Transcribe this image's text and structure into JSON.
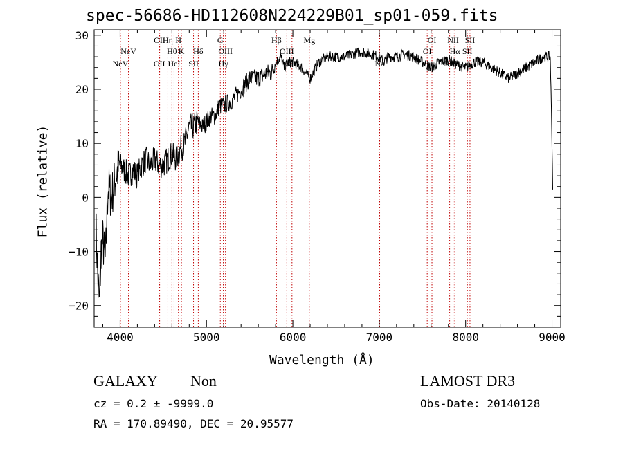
{
  "chart_data": {
    "type": "line",
    "title": "spec-56686-HD112608N224229B01_sp01-059.fits",
    "xlabel": "Wavelength (Å)",
    "ylabel": "Flux (relative)",
    "xlim": [
      3700,
      9100
    ],
    "ylim": [
      -24,
      31
    ],
    "xticks": [
      4000,
      5000,
      6000,
      7000,
      8000,
      9000
    ],
    "yticks": [
      -20,
      -10,
      0,
      10,
      20,
      30
    ],
    "line_color": "#000000",
    "marker_color": "#c00000",
    "series": [
      {
        "name": "flux",
        "anchors": [
          [
            3720,
            -5
          ],
          [
            3740,
            -14
          ],
          [
            3760,
            -20
          ],
          [
            3780,
            -10
          ],
          [
            3800,
            -8
          ],
          [
            3830,
            -12
          ],
          [
            3860,
            2
          ],
          [
            3900,
            0
          ],
          [
            3950,
            4
          ],
          [
            4000,
            6
          ],
          [
            4050,
            5
          ],
          [
            4100,
            4
          ],
          [
            4150,
            5
          ],
          [
            4200,
            4
          ],
          [
            4250,
            6
          ],
          [
            4300,
            7
          ],
          [
            4350,
            6
          ],
          [
            4400,
            7
          ],
          [
            4450,
            6
          ],
          [
            4500,
            6
          ],
          [
            4550,
            7
          ],
          [
            4600,
            8
          ],
          [
            4650,
            7
          ],
          [
            4700,
            9
          ],
          [
            4750,
            10
          ],
          [
            4800,
            13
          ],
          [
            4850,
            13
          ],
          [
            4900,
            14
          ],
          [
            4950,
            13
          ],
          [
            5000,
            14
          ],
          [
            5050,
            15
          ],
          [
            5100,
            15
          ],
          [
            5150,
            17
          ],
          [
            5200,
            17
          ],
          [
            5300,
            18
          ],
          [
            5400,
            20
          ],
          [
            5500,
            22
          ],
          [
            5600,
            22
          ],
          [
            5700,
            23
          ],
          [
            5750,
            23
          ],
          [
            5800,
            25
          ],
          [
            5860,
            26
          ],
          [
            5900,
            24
          ],
          [
            5950,
            25
          ],
          [
            6000,
            25
          ],
          [
            6100,
            24
          ],
          [
            6200,
            22
          ],
          [
            6300,
            25
          ],
          [
            6400,
            26
          ],
          [
            6500,
            26
          ],
          [
            6600,
            26
          ],
          [
            6700,
            26.5
          ],
          [
            6800,
            27
          ],
          [
            6900,
            26.5
          ],
          [
            7000,
            26
          ],
          [
            7050,
            25
          ],
          [
            7100,
            26
          ],
          [
            7200,
            26
          ],
          [
            7300,
            26.5
          ],
          [
            7400,
            26
          ],
          [
            7500,
            25
          ],
          [
            7600,
            24
          ],
          [
            7700,
            25
          ],
          [
            7800,
            25.5
          ],
          [
            7900,
            24.5
          ],
          [
            8000,
            24
          ],
          [
            8100,
            25
          ],
          [
            8200,
            25
          ],
          [
            8300,
            24
          ],
          [
            8400,
            23
          ],
          [
            8500,
            22
          ],
          [
            8600,
            23
          ],
          [
            8700,
            24
          ],
          [
            8800,
            25
          ],
          [
            8900,
            26
          ],
          [
            8980,
            26
          ],
          [
            9000,
            10
          ],
          [
            9010,
            0
          ]
        ]
      }
    ],
    "lines": [
      {
        "name": "NeV 3346",
        "x": 4004,
        "label": "NeV",
        "row": 2
      },
      {
        "name": "NeV 3426",
        "x": 4097,
        "label": "NeV",
        "row": 1
      },
      {
        "name": "OII 3727",
        "x": 4455,
        "label": "OII",
        "row": 2
      },
      {
        "name": "OII 3729",
        "x": 4458,
        "label": "OII",
        "row": 0
      },
      {
        "name": "Hη",
        "x": 4553,
        "label": "Hη",
        "row": 0
      },
      {
        "name": "Hθ",
        "x": 4600,
        "label": "Hθ",
        "row": 1
      },
      {
        "name": "HeI",
        "x": 4625,
        "label": "HeI",
        "row": 2
      },
      {
        "name": "H",
        "x": 4675,
        "label": "H",
        "row": 0
      },
      {
        "name": "K",
        "x": 4710,
        "label": "K",
        "row": 1
      },
      {
        "name": "SII 4070",
        "x": 4850,
        "label": "SII",
        "row": 2
      },
      {
        "name": "Hδ",
        "x": 4905,
        "label": "Hδ",
        "row": 1
      },
      {
        "name": "G",
        "x": 5160,
        "label": "G",
        "row": 0
      },
      {
        "name": "Hγ",
        "x": 5195,
        "label": "Hγ",
        "row": 2
      },
      {
        "name": "OIII 4363",
        "x": 5220,
        "label": "OIII",
        "row": 1
      },
      {
        "name": "Hβ",
        "x": 5810,
        "label": "Hβ",
        "row": 0
      },
      {
        "name": "OIII 4959",
        "x": 5930,
        "label": "OIII",
        "row": 1
      },
      {
        "name": "OIII 5007",
        "x": 5990,
        "label": "OIII",
        "row": 2
      },
      {
        "name": "Mg",
        "x": 6190,
        "label": "Mg",
        "row": 0
      },
      {
        "name": "Na",
        "x": 7005,
        "label": "Na",
        "row": 2
      },
      {
        "name": "OI 6300",
        "x": 7555,
        "label": "OI",
        "row": 1
      },
      {
        "name": "OI 6364",
        "x": 7610,
        "label": "OI",
        "row": 0
      },
      {
        "name": "NII 6548",
        "x": 7815,
        "label": "NII",
        "row": 2
      },
      {
        "name": "NII 6583",
        "x": 7855,
        "label": "NII",
        "row": 0
      },
      {
        "name": "Hα",
        "x": 7875,
        "label": "Hα",
        "row": 1
      },
      {
        "name": "SII 6716",
        "x": 8020,
        "label": "SII",
        "row": 1
      },
      {
        "name": "SII 6731",
        "x": 8050,
        "label": "SII",
        "row": 0
      }
    ]
  },
  "info": {
    "class_text": "GALAXY",
    "subclass_text": "Non",
    "survey_text": "LAMOST DR3",
    "cz_text": "cz = 0.2 ± -9999.0",
    "obsdate_text": "Obs-Date: 20140128",
    "radec_text": "RA = 170.89490, DEC =  20.95577"
  }
}
